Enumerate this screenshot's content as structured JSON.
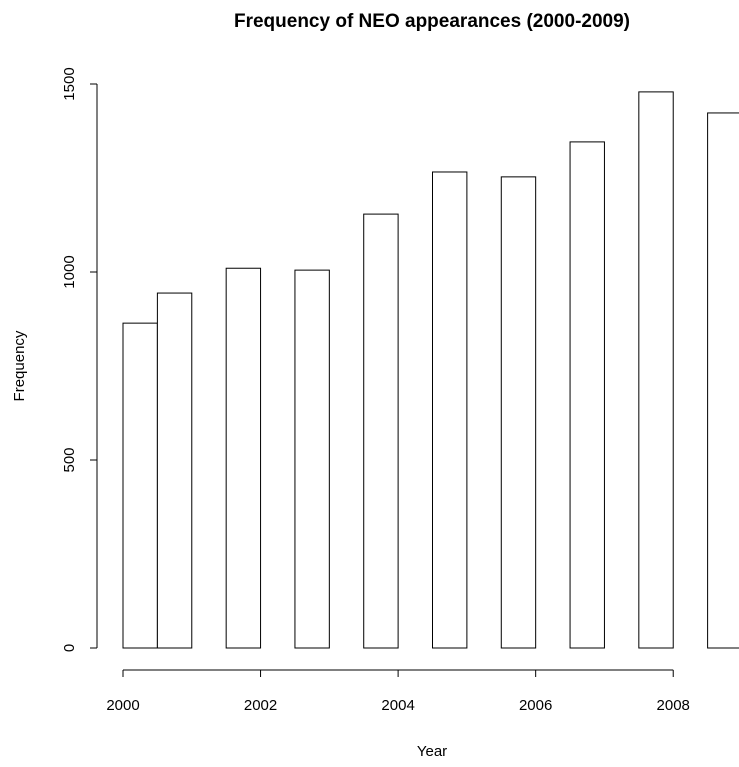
{
  "chart_data": {
    "type": "histogram",
    "title": "Frequency of NEO appearances (2000-2009)",
    "x_label": "Year",
    "y_label": "Frequency",
    "bins": [
      2000,
      2000.5,
      2001,
      2001.5,
      2002,
      2002.5,
      2003,
      2003.5,
      2004,
      2004.5,
      2005,
      2005.5,
      2006,
      2006.5,
      2007,
      2007.5,
      2008,
      2008.5,
      2009
    ],
    "values": [
      864,
      944,
      0,
      1010,
      0,
      1005,
      0,
      1154,
      0,
      1266,
      0,
      1253,
      0,
      1346,
      0,
      1479,
      0,
      1423
    ],
    "color": "#ffffff",
    "xlim": [
      2000,
      2009
    ],
    "ylim": [
      0,
      1500
    ],
    "xticks": [
      2000,
      2002,
      2004,
      2006,
      2008
    ],
    "yticks": [
      0,
      500,
      1000,
      1500
    ],
    "grid": false
  }
}
